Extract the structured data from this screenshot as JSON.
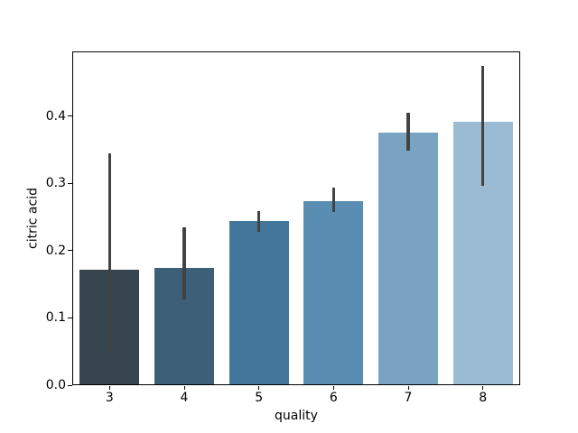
{
  "chart_data": {
    "type": "bar",
    "title": "",
    "xlabel": "quality",
    "ylabel": "citric acid",
    "categories": [
      "3",
      "4",
      "5",
      "6",
      "7",
      "8"
    ],
    "values": [
      0.171,
      0.174,
      0.244,
      0.274,
      0.375,
      0.391
    ],
    "error_bars": {
      "low": [
        0.047,
        0.127,
        0.228,
        0.258,
        0.349,
        0.296
      ],
      "high": [
        0.345,
        0.235,
        0.259,
        0.293,
        0.405,
        0.475
      ]
    },
    "ylim": [
      0,
      0.496
    ],
    "yticks": [
      0.0,
      0.1,
      0.2,
      0.3,
      0.4
    ],
    "grid": false,
    "legend": "none",
    "bar_colors": [
      "#36454E",
      "#3D6078",
      "#42779B",
      "#598DB2",
      "#7AA3C2",
      "#9BBAD3"
    ],
    "error_color": "#424242",
    "spine_color": "#000000",
    "background_color": "#ffffff"
  }
}
